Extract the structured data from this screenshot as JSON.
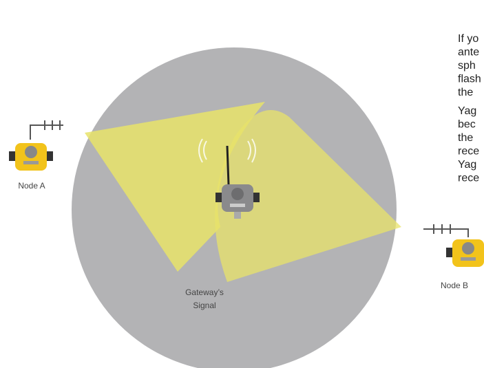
{
  "labels": {
    "node_a": "Node A",
    "node_b": "Node B",
    "gateway": [
      "Gateway’s",
      "Signal"
    ]
  },
  "paragraphs": [
    [
      "If yo",
      "ante",
      "sph",
      "flash",
      "the"
    ],
    [
      "Yag",
      "bec",
      "the",
      "rece",
      "Yag",
      "rece"
    ]
  ]
}
